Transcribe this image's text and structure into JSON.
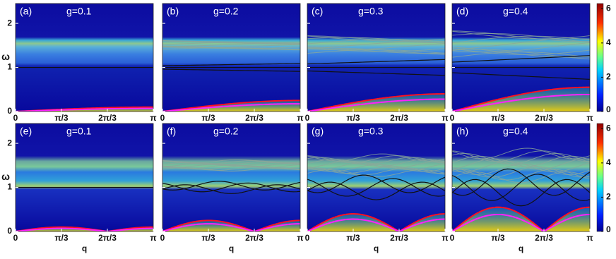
{
  "chart_data": {
    "type": "heatmap",
    "xlabel": "q",
    "ylabel": "ω",
    "xlim": [
      0,
      3.1416
    ],
    "xticks": [
      0,
      {
        "value": 1.0472,
        "label": "π/3"
      },
      {
        "value": 2.0944,
        "label": "2π/3"
      },
      {
        "value": 3.1416,
        "label": "π"
      }
    ],
    "ylim": [
      0,
      2.45
    ],
    "yticks": [
      0,
      1,
      2
    ],
    "panels": [
      {
        "label": "(a)",
        "title": "g=0.1"
      },
      {
        "label": "(b)",
        "title": "g=0.2"
      },
      {
        "label": "(c)",
        "title": "g=0.3"
      },
      {
        "label": "(d)",
        "title": "g=0.4"
      },
      {
        "label": "(e)",
        "title": "g=0.1"
      },
      {
        "label": "(f)",
        "title": "g=0.2"
      },
      {
        "label": "(g)",
        "title": "g=0.3"
      },
      {
        "label": "(h)",
        "title": "g=0.4"
      }
    ],
    "colorbars": [
      {
        "zlim": [
          0,
          6.3
        ],
        "zticks": [
          0,
          2,
          4,
          6
        ]
      },
      {
        "zlim": [
          0,
          6.3
        ],
        "zticks": [
          0,
          2,
          4,
          6
        ]
      }
    ]
  }
}
